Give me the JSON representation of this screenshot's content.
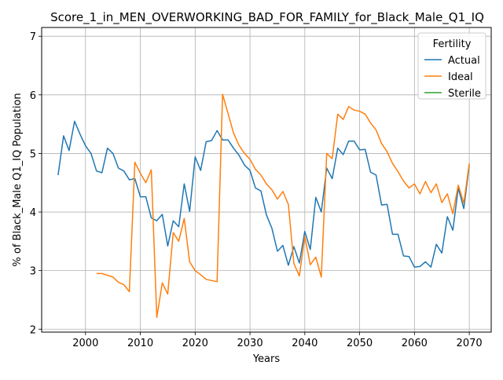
{
  "chart_data": {
    "type": "line",
    "title": "Score_1_in_MEN_OVERWORKING_BAD_FOR_FAMILY_for_Black_Male_Q1_IQ",
    "xlabel": "Years",
    "ylabel": "% of Black_Male Q1_IQ Population",
    "xlim": [
      1992,
      2074
    ],
    "ylim": [
      1.95,
      7.15
    ],
    "xticks": [
      2000,
      2010,
      2020,
      2030,
      2040,
      2050,
      2060,
      2070
    ],
    "yticks": [
      2,
      3,
      4,
      5,
      6,
      7
    ],
    "grid": true,
    "legend": {
      "title": "Fertility",
      "placement": "top-right"
    },
    "series": [
      {
        "name": "Actual",
        "color": "#1f77b4",
        "x": [
          1995,
          1996,
          1997,
          1998,
          1999,
          2000,
          2001,
          2002,
          2003,
          2004,
          2005,
          2006,
          2007,
          2008,
          2009,
          2010,
          2011,
          2012,
          2013,
          2014,
          2015,
          2016,
          2017,
          2018,
          2019,
          2020,
          2021,
          2022,
          2023,
          2024,
          2025,
          2026,
          2027,
          2028,
          2029,
          2030,
          2031,
          2032,
          2033,
          2034,
          2035,
          2036,
          2037,
          2038,
          2039,
          2040,
          2041,
          2042,
          2043,
          2044,
          2045,
          2046,
          2047,
          2048,
          2049,
          2050,
          2051,
          2052,
          2053,
          2054,
          2055,
          2056,
          2057,
          2058,
          2059,
          2060,
          2061,
          2062,
          2063,
          2064,
          2065,
          2066,
          2067,
          2068,
          2069,
          2070
        ],
        "values": [
          4.63,
          5.3,
          5.05,
          5.55,
          5.33,
          5.13,
          5.0,
          4.7,
          4.67,
          5.09,
          5.0,
          4.75,
          4.7,
          4.55,
          4.57,
          4.26,
          4.26,
          3.9,
          3.85,
          3.96,
          3.42,
          3.85,
          3.75,
          4.48,
          4.01,
          4.94,
          4.71,
          5.2,
          5.22,
          5.39,
          5.23,
          5.23,
          5.09,
          4.97,
          4.8,
          4.71,
          4.41,
          4.36,
          3.95,
          3.72,
          3.33,
          3.43,
          3.09,
          3.41,
          3.13,
          3.67,
          3.36,
          4.25,
          4.0,
          4.75,
          4.57,
          5.09,
          4.98,
          5.21,
          5.21,
          5.06,
          5.07,
          4.68,
          4.63,
          4.12,
          4.13,
          3.62,
          3.62,
          3.25,
          3.24,
          3.06,
          3.07,
          3.15,
          3.06,
          3.45,
          3.3,
          3.92,
          3.69,
          4.41,
          4.06,
          4.8
        ]
      },
      {
        "name": "Ideal",
        "color": "#ff7f0e",
        "x": [
          2002,
          2003,
          2004,
          2005,
          2006,
          2007,
          2008,
          2009,
          2010,
          2011,
          2012,
          2013,
          2014,
          2015,
          2016,
          2017,
          2018,
          2019,
          2020,
          2021,
          2022,
          2023,
          2024,
          2025,
          2026,
          2027,
          2028,
          2029,
          2030,
          2031,
          2032,
          2033,
          2034,
          2035,
          2036,
          2037,
          2038,
          2039,
          2040,
          2041,
          2042,
          2043,
          2044,
          2045,
          2046,
          2047,
          2048,
          2049,
          2050,
          2051,
          2052,
          2053,
          2054,
          2055,
          2056,
          2057,
          2058,
          2059,
          2060,
          2061,
          2062,
          2063,
          2064,
          2065,
          2066,
          2067,
          2068,
          2069,
          2070
        ],
        "values": [
          2.95,
          2.95,
          2.92,
          2.89,
          2.8,
          2.76,
          2.64,
          4.85,
          4.66,
          4.5,
          4.72,
          2.2,
          2.79,
          2.6,
          3.65,
          3.5,
          3.89,
          3.15,
          3.0,
          2.93,
          2.85,
          2.83,
          2.81,
          6.01,
          5.68,
          5.35,
          5.14,
          5.0,
          4.9,
          4.73,
          4.63,
          4.48,
          4.38,
          4.22,
          4.35,
          4.13,
          3.12,
          2.91,
          3.58,
          3.1,
          3.23,
          2.89,
          5.0,
          4.91,
          5.67,
          5.58,
          5.8,
          5.74,
          5.72,
          5.67,
          5.52,
          5.4,
          5.17,
          5.03,
          4.83,
          4.69,
          4.53,
          4.41,
          4.48,
          4.31,
          4.52,
          4.33,
          4.48,
          4.16,
          4.31,
          3.97,
          4.46,
          4.15,
          4.83
        ]
      },
      {
        "name": "Sterile",
        "color": "#2ca02c",
        "x": [],
        "values": []
      }
    ]
  }
}
